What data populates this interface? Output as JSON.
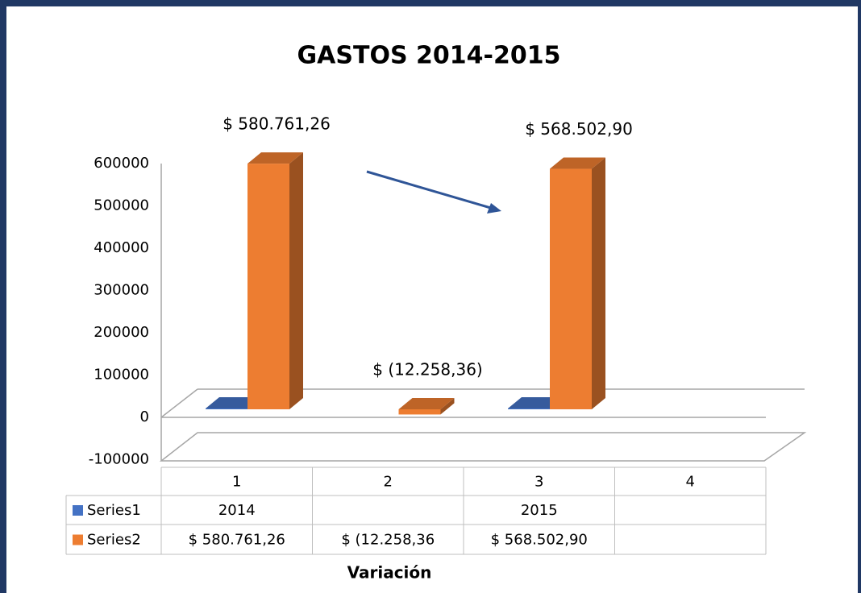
{
  "chart_data": {
    "type": "bar3d",
    "title": "GASTOS 2014-2015",
    "x_label": "Variación",
    "categories": [
      "1",
      "2",
      "3",
      "4"
    ],
    "series": [
      {
        "name": "Series1",
        "color": "#4472c4",
        "values": [
          2014,
          null,
          2015,
          null
        ]
      },
      {
        "name": "Series2",
        "color": "#ed7d31",
        "values": [
          580761.26,
          -12258.36,
          568502.9,
          null
        ],
        "value_labels": [
          "$ 580.761,26",
          "$ (12.258,36)",
          "$ 568.502,90",
          null
        ],
        "table_labels": [
          "$ 580.761,26",
          "$ (12.258,36",
          "$ 568.502,90",
          null
        ]
      }
    ],
    "ylim": [
      -100000,
      600000
    ],
    "yticks": [
      -100000,
      0,
      100000,
      200000,
      300000,
      400000,
      500000,
      600000
    ],
    "grid": false,
    "data_table": true
  }
}
